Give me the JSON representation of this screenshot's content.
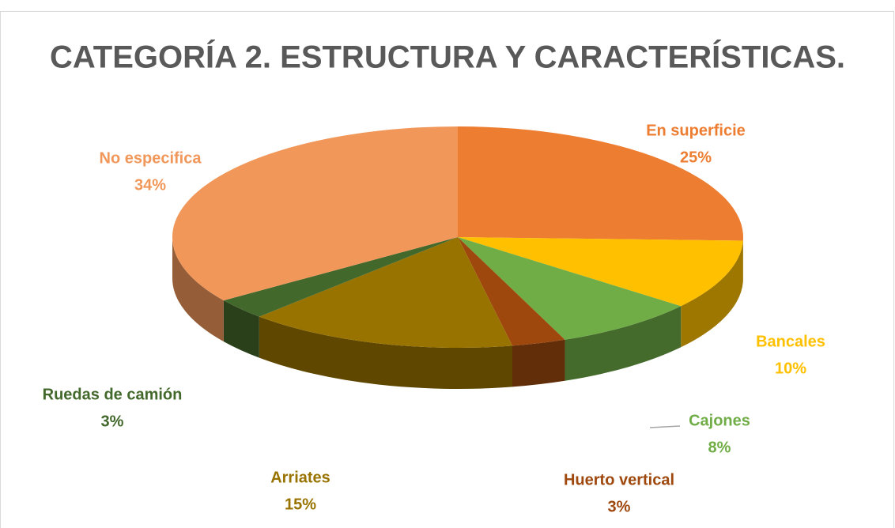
{
  "chart_data": {
    "type": "pie",
    "title": "CATEGORÍA 2. ESTRUCTURA Y CARACTERÍSTICAS.",
    "categories": [
      "En superficie",
      "Bancales",
      "Cajones",
      "Huerto vertical",
      "Arriates",
      "Ruedas de camión",
      "No especifica"
    ],
    "values": [
      25,
      10,
      8,
      3,
      15,
      3,
      34
    ],
    "value_labels": [
      "25%",
      "10%",
      "8%",
      "3%",
      "15%",
      "3%",
      "34%"
    ],
    "colors": [
      "#ED7D31",
      "#FFC000",
      "#70AD47",
      "#9E480E",
      "#997300",
      "#43682B",
      "#F1975A"
    ]
  }
}
